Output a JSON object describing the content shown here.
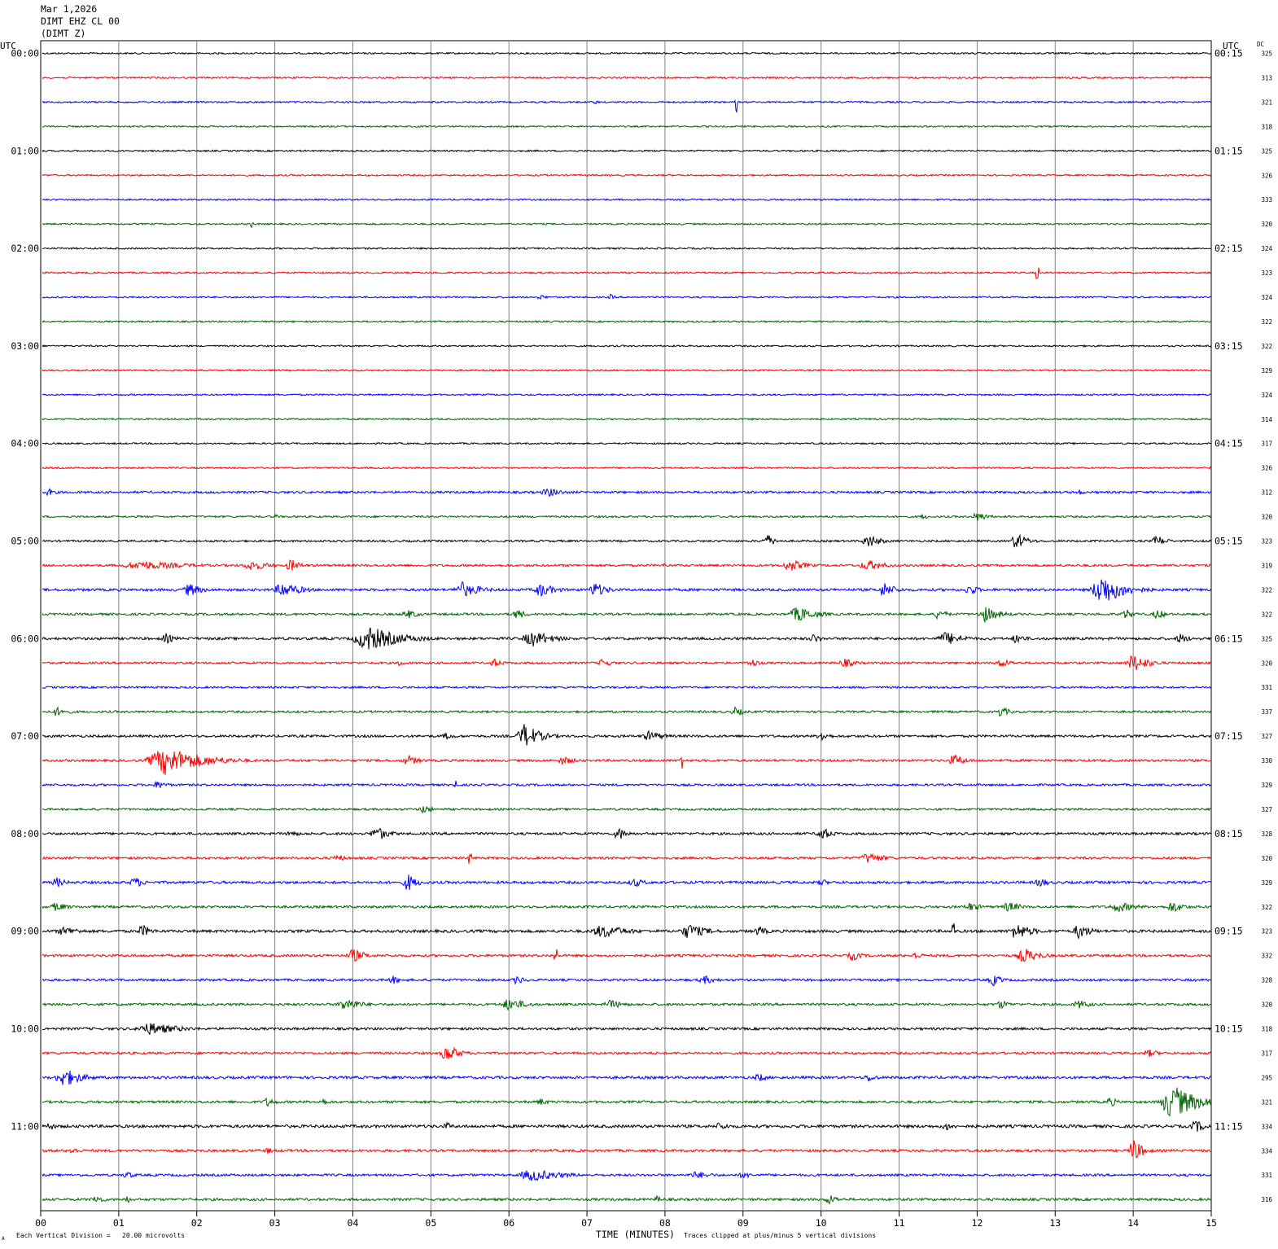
{
  "header": {
    "date": "Mar 1,2026",
    "station": "DIMT EHZ CL 00",
    "channel": "(DIMT Z)"
  },
  "axis_labels": {
    "left_utc": "UTC",
    "right_utc": "UTC",
    "dc": "DC",
    "x_title": "TIME (MINUTES)"
  },
  "footer": {
    "scale_note": "Each Vertical Division =   20.00 microvolts",
    "clip_note": "Traces clipped at plus/minus 5 vertical divisions",
    "corner_mark": "A"
  },
  "colors": {
    "black": "#000000",
    "red": "#ff0000",
    "blue": "#0000ff",
    "green": "#006400",
    "grid": "#808080"
  },
  "chart_data": {
    "type": "line",
    "title": "",
    "xlabel": "TIME (MINUTES)",
    "x_ticks": [
      "00",
      "01",
      "02",
      "03",
      "04",
      "05",
      "06",
      "07",
      "08",
      "09",
      "10",
      "11",
      "12",
      "13",
      "14",
      "15"
    ],
    "xlim": [
      0,
      15
    ],
    "trace_colors": [
      "black",
      "red",
      "blue",
      "green"
    ],
    "left_hour_labels": [
      "00:00",
      "01:00",
      "02:00",
      "03:00",
      "04:00",
      "05:00",
      "06:00",
      "07:00",
      "08:00",
      "09:00",
      "10:00",
      "11:00"
    ],
    "right_hour_labels": [
      "00:15",
      "01:15",
      "02:15",
      "03:15",
      "04:15",
      "05:15",
      "06:15",
      "07:15",
      "08:15",
      "09:15",
      "10:15",
      "11:15"
    ],
    "dc_values": [
      "325",
      "313",
      "321",
      "318",
      "325",
      "326",
      "333",
      "320",
      "324",
      "323",
      "324",
      "322",
      "322",
      "329",
      "324",
      "314",
      "317",
      "326",
      "312",
      "320",
      "323",
      "319",
      "322",
      "322",
      "325",
      "320",
      "331",
      "337",
      "327",
      "330",
      "329",
      "327",
      "328",
      "320",
      "329",
      "322",
      "323",
      "332",
      "328",
      "320",
      "318",
      "317",
      "295",
      "321",
      "334",
      "334",
      "331",
      "316"
    ],
    "trace_noise": [
      1,
      1,
      1,
      1,
      1,
      1,
      1,
      1,
      1,
      1,
      1,
      1,
      1,
      1,
      1,
      1,
      1,
      1,
      1.4,
      1.2,
      1.2,
      1.4,
      1.6,
      1.4,
      1.6,
      1.3,
      1.2,
      1.3,
      1.5,
      1.4,
      1.3,
      1.3,
      1.5,
      1.4,
      1.6,
      1.5,
      1.7,
      1.5,
      1.4,
      1.5,
      1.5,
      1.4,
      1.6,
      1.5,
      1.8,
      1.5,
      1.4,
      1.5
    ],
    "events": [
      {
        "trace": 2,
        "t": 8.9,
        "amp": 14,
        "dur": 0.02
      },
      {
        "trace": 2,
        "t": 7.1,
        "amp": 4,
        "dur": 0.1
      },
      {
        "trace": 7,
        "t": 2.7,
        "amp": 5,
        "dur": 0.08
      },
      {
        "trace": 9,
        "t": 12.77,
        "amp": 9,
        "dur": 0.02
      },
      {
        "trace": 10,
        "t": 6.4,
        "amp": 4,
        "dur": 0.2
      },
      {
        "trace": 10,
        "t": 7.3,
        "amp": 4,
        "dur": 0.15
      },
      {
        "trace": 17,
        "t": 14.95,
        "amp": 4,
        "dur": 0.1
      },
      {
        "trace": 18,
        "t": 0.1,
        "amp": 5,
        "dur": 0.25
      },
      {
        "trace": 18,
        "t": 6.5,
        "amp": 6,
        "dur": 0.5
      },
      {
        "trace": 18,
        "t": 13.3,
        "amp": 4,
        "dur": 0.2
      },
      {
        "trace": 19,
        "t": 3.0,
        "amp": 4,
        "dur": 0.1
      },
      {
        "trace": 19,
        "t": 11.3,
        "amp": 4,
        "dur": 0.2
      },
      {
        "trace": 19,
        "t": 12.0,
        "amp": 6,
        "dur": 0.4
      },
      {
        "trace": 20,
        "t": 9.3,
        "amp": 10,
        "dur": 0.25
      },
      {
        "trace": 20,
        "t": 10.6,
        "amp": 9,
        "dur": 0.4
      },
      {
        "trace": 20,
        "t": 12.5,
        "amp": 11,
        "dur": 0.35
      },
      {
        "trace": 20,
        "t": 14.3,
        "amp": 8,
        "dur": 0.3
      },
      {
        "trace": 21,
        "t": 1.3,
        "amp": 6,
        "dur": 1.5
      },
      {
        "trace": 21,
        "t": 2.7,
        "amp": 7,
        "dur": 0.6
      },
      {
        "trace": 21,
        "t": 3.2,
        "amp": 9,
        "dur": 0.3
      },
      {
        "trace": 21,
        "t": 8.0,
        "amp": 5,
        "dur": 0.1
      },
      {
        "trace": 21,
        "t": 9.6,
        "amp": 8,
        "dur": 0.5
      },
      {
        "trace": 21,
        "t": 10.6,
        "amp": 7,
        "dur": 0.6
      },
      {
        "trace": 22,
        "t": 1.9,
        "amp": 9,
        "dur": 0.4
      },
      {
        "trace": 22,
        "t": 3.1,
        "amp": 10,
        "dur": 0.6
      },
      {
        "trace": 22,
        "t": 5.4,
        "amp": 10,
        "dur": 0.6
      },
      {
        "trace": 22,
        "t": 6.4,
        "amp": 9,
        "dur": 0.5
      },
      {
        "trace": 22,
        "t": 7.1,
        "amp": 10,
        "dur": 0.4
      },
      {
        "trace": 22,
        "t": 10.8,
        "amp": 10,
        "dur": 0.4
      },
      {
        "trace": 22,
        "t": 11.9,
        "amp": 8,
        "dur": 0.3
      },
      {
        "trace": 22,
        "t": 13.6,
        "amp": 20,
        "dur": 0.7
      },
      {
        "trace": 23,
        "t": 4.7,
        "amp": 6,
        "dur": 0.4
      },
      {
        "trace": 23,
        "t": 6.1,
        "amp": 7,
        "dur": 0.3
      },
      {
        "trace": 23,
        "t": 9.7,
        "amp": 10,
        "dur": 0.6
      },
      {
        "trace": 23,
        "t": 11.5,
        "amp": 7,
        "dur": 0.3
      },
      {
        "trace": 23,
        "t": 12.1,
        "amp": 10,
        "dur": 0.5
      },
      {
        "trace": 23,
        "t": 13.9,
        "amp": 7,
        "dur": 0.3
      },
      {
        "trace": 23,
        "t": 14.3,
        "amp": 7,
        "dur": 0.3
      },
      {
        "trace": 24,
        "t": 1.6,
        "amp": 7,
        "dur": 0.3
      },
      {
        "trace": 24,
        "t": 4.2,
        "amp": 16,
        "dur": 1.0
      },
      {
        "trace": 24,
        "t": 6.3,
        "amp": 10,
        "dur": 0.7
      },
      {
        "trace": 24,
        "t": 9.9,
        "amp": 6,
        "dur": 0.3
      },
      {
        "trace": 24,
        "t": 11.6,
        "amp": 9,
        "dur": 0.6
      },
      {
        "trace": 24,
        "t": 12.5,
        "amp": 7,
        "dur": 0.3
      },
      {
        "trace": 24,
        "t": 14.6,
        "amp": 7,
        "dur": 0.3
      },
      {
        "trace": 25,
        "t": 4.6,
        "amp": 5,
        "dur": 0.2
      },
      {
        "trace": 25,
        "t": 5.8,
        "amp": 6,
        "dur": 0.3
      },
      {
        "trace": 25,
        "t": 7.2,
        "amp": 6,
        "dur": 0.3
      },
      {
        "trace": 25,
        "t": 9.1,
        "amp": 6,
        "dur": 0.3
      },
      {
        "trace": 25,
        "t": 10.3,
        "amp": 6,
        "dur": 0.4
      },
      {
        "trace": 25,
        "t": 12.3,
        "amp": 6,
        "dur": 0.4
      },
      {
        "trace": 25,
        "t": 14.0,
        "amp": 12,
        "dur": 0.5
      },
      {
        "trace": 27,
        "t": 0.2,
        "amp": 6,
        "dur": 0.4
      },
      {
        "trace": 27,
        "t": 8.9,
        "amp": 6,
        "dur": 0.3
      },
      {
        "trace": 27,
        "t": 12.3,
        "amp": 7,
        "dur": 0.3
      },
      {
        "trace": 28,
        "t": 5.2,
        "amp": 5,
        "dur": 0.3
      },
      {
        "trace": 28,
        "t": 6.2,
        "amp": 16,
        "dur": 0.5
      },
      {
        "trace": 28,
        "t": 7.8,
        "amp": 7,
        "dur": 0.5
      },
      {
        "trace": 28,
        "t": 10.0,
        "amp": 7,
        "dur": 0.3
      },
      {
        "trace": 29,
        "t": 1.6,
        "amp": 18,
        "dur": 1.2
      },
      {
        "trace": 29,
        "t": 4.7,
        "amp": 7,
        "dur": 0.4
      },
      {
        "trace": 29,
        "t": 6.7,
        "amp": 6,
        "dur": 0.4
      },
      {
        "trace": 29,
        "t": 8.2,
        "amp": 10,
        "dur": 0.03
      },
      {
        "trace": 29,
        "t": 11.7,
        "amp": 8,
        "dur": 0.4
      },
      {
        "trace": 30,
        "t": 1.5,
        "amp": 5,
        "dur": 0.4
      },
      {
        "trace": 30,
        "t": 5.3,
        "amp": 12,
        "dur": 0.03
      },
      {
        "trace": 31,
        "t": 4.9,
        "amp": 6,
        "dur": 0.3
      },
      {
        "trace": 32,
        "t": 3.2,
        "amp": 5,
        "dur": 0.3
      },
      {
        "trace": 32,
        "t": 4.3,
        "amp": 10,
        "dur": 0.4
      },
      {
        "trace": 32,
        "t": 7.4,
        "amp": 9,
        "dur": 0.3
      },
      {
        "trace": 32,
        "t": 10.0,
        "amp": 10,
        "dur": 0.3
      },
      {
        "trace": 33,
        "t": 3.8,
        "amp": 5,
        "dur": 0.3
      },
      {
        "trace": 33,
        "t": 5.5,
        "amp": 8,
        "dur": 0.03
      },
      {
        "trace": 33,
        "t": 10.6,
        "amp": 7,
        "dur": 0.6
      },
      {
        "trace": 34,
        "t": 0.2,
        "amp": 7,
        "dur": 0.3
      },
      {
        "trace": 34,
        "t": 1.2,
        "amp": 8,
        "dur": 0.3
      },
      {
        "trace": 34,
        "t": 4.7,
        "amp": 12,
        "dur": 0.3
      },
      {
        "trace": 34,
        "t": 7.6,
        "amp": 6,
        "dur": 0.4
      },
      {
        "trace": 34,
        "t": 10.0,
        "amp": 6,
        "dur": 0.2
      },
      {
        "trace": 34,
        "t": 12.8,
        "amp": 7,
        "dur": 0.3
      },
      {
        "trace": 35,
        "t": 0.2,
        "amp": 6,
        "dur": 0.4
      },
      {
        "trace": 35,
        "t": 11.9,
        "amp": 6,
        "dur": 0.4
      },
      {
        "trace": 35,
        "t": 12.4,
        "amp": 7,
        "dur": 0.4
      },
      {
        "trace": 35,
        "t": 13.8,
        "amp": 7,
        "dur": 0.6
      },
      {
        "trace": 35,
        "t": 14.5,
        "amp": 8,
        "dur": 0.4
      },
      {
        "trace": 36,
        "t": 0.3,
        "amp": 6,
        "dur": 0.6
      },
      {
        "trace": 36,
        "t": 1.3,
        "amp": 9,
        "dur": 0.3
      },
      {
        "trace": 36,
        "t": 7.2,
        "amp": 9,
        "dur": 0.8
      },
      {
        "trace": 36,
        "t": 8.3,
        "amp": 10,
        "dur": 0.6
      },
      {
        "trace": 36,
        "t": 9.2,
        "amp": 7,
        "dur": 0.3
      },
      {
        "trace": 36,
        "t": 11.7,
        "amp": 12,
        "dur": 0.03
      },
      {
        "trace": 36,
        "t": 12.5,
        "amp": 11,
        "dur": 0.5
      },
      {
        "trace": 36,
        "t": 13.3,
        "amp": 10,
        "dur": 0.4
      },
      {
        "trace": 37,
        "t": 4.0,
        "amp": 9,
        "dur": 0.4
      },
      {
        "trace": 37,
        "t": 6.6,
        "amp": 9,
        "dur": 0.03
      },
      {
        "trace": 37,
        "t": 10.4,
        "amp": 7,
        "dur": 0.3
      },
      {
        "trace": 37,
        "t": 11.2,
        "amp": 5,
        "dur": 0.3
      },
      {
        "trace": 37,
        "t": 12.6,
        "amp": 10,
        "dur": 0.5
      },
      {
        "trace": 38,
        "t": 4.5,
        "amp": 6,
        "dur": 0.3
      },
      {
        "trace": 38,
        "t": 6.1,
        "amp": 6,
        "dur": 0.3
      },
      {
        "trace": 38,
        "t": 8.5,
        "amp": 6,
        "dur": 0.4
      },
      {
        "trace": 38,
        "t": 12.2,
        "amp": 8,
        "dur": 0.3
      },
      {
        "trace": 39,
        "t": 3.9,
        "amp": 9,
        "dur": 0.5
      },
      {
        "trace": 39,
        "t": 6.0,
        "amp": 8,
        "dur": 0.6
      },
      {
        "trace": 39,
        "t": 7.3,
        "amp": 6,
        "dur": 0.5
      },
      {
        "trace": 39,
        "t": 12.3,
        "amp": 6,
        "dur": 0.3
      },
      {
        "trace": 39,
        "t": 13.3,
        "amp": 6,
        "dur": 0.4
      },
      {
        "trace": 40,
        "t": 1.4,
        "amp": 8,
        "dur": 1.0
      },
      {
        "trace": 41,
        "t": 5.2,
        "amp": 12,
        "dur": 0.4
      },
      {
        "trace": 41,
        "t": 14.2,
        "amp": 5,
        "dur": 0.4
      },
      {
        "trace": 42,
        "t": 0.3,
        "amp": 12,
        "dur": 0.6
      },
      {
        "trace": 42,
        "t": 9.2,
        "amp": 6,
        "dur": 0.3
      },
      {
        "trace": 42,
        "t": 10.6,
        "amp": 6,
        "dur": 0.3
      },
      {
        "trace": 43,
        "t": 2.9,
        "amp": 6,
        "dur": 0.3
      },
      {
        "trace": 43,
        "t": 3.6,
        "amp": 5,
        "dur": 0.3
      },
      {
        "trace": 43,
        "t": 6.4,
        "amp": 5,
        "dur": 0.3
      },
      {
        "trace": 43,
        "t": 13.7,
        "amp": 8,
        "dur": 0.2
      },
      {
        "trace": 43,
        "t": 14.5,
        "amp": 22,
        "dur": 0.8
      },
      {
        "trace": 44,
        "t": 0.1,
        "amp": 7,
        "dur": 0.2
      },
      {
        "trace": 44,
        "t": 5.2,
        "amp": 6,
        "dur": 0.2
      },
      {
        "trace": 44,
        "t": 8.7,
        "amp": 6,
        "dur": 0.3
      },
      {
        "trace": 44,
        "t": 11.6,
        "amp": 6,
        "dur": 0.3
      },
      {
        "trace": 44,
        "t": 14.8,
        "amp": 8,
        "dur": 0.4
      },
      {
        "trace": 45,
        "t": 0.4,
        "amp": 5,
        "dur": 0.3
      },
      {
        "trace": 45,
        "t": 2.9,
        "amp": 5,
        "dur": 0.2
      },
      {
        "trace": 45,
        "t": 14.0,
        "amp": 16,
        "dur": 0.3
      },
      {
        "trace": 46,
        "t": 1.1,
        "amp": 5,
        "dur": 0.3
      },
      {
        "trace": 46,
        "t": 6.3,
        "amp": 8,
        "dur": 1.0
      },
      {
        "trace": 46,
        "t": 8.4,
        "amp": 5,
        "dur": 0.6
      },
      {
        "trace": 46,
        "t": 9.0,
        "amp": 5,
        "dur": 0.3
      },
      {
        "trace": 47,
        "t": 0.7,
        "amp": 6,
        "dur": 0.3
      },
      {
        "trace": 47,
        "t": 1.1,
        "amp": 5,
        "dur": 0.2
      },
      {
        "trace": 47,
        "t": 7.9,
        "amp": 5,
        "dur": 0.2
      },
      {
        "trace": 47,
        "t": 10.1,
        "amp": 7,
        "dur": 0.3
      }
    ]
  }
}
